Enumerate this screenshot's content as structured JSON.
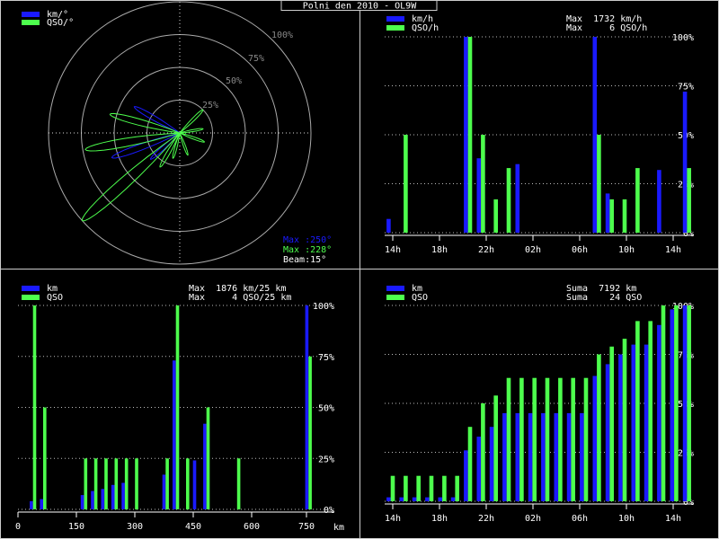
{
  "title": "Polni den 2010 - OL9W",
  "colors": {
    "blue": "#1a1aff",
    "green": "#4dff4d",
    "grid": "#aaaaaa",
    "bg": "#000000"
  },
  "chart_data": [
    {
      "type": "polar",
      "legend": [
        "km/°",
        "QSO/°"
      ],
      "ring_labels": [
        "100%",
        "75%",
        "50%",
        "25%"
      ],
      "info": {
        "max_blue": "Max :250°",
        "max_green": "Max :228°",
        "beam": "Beam:15°"
      },
      "series": [
        {
          "name": "km/°",
          "lobes": [
            {
              "angle": 228,
              "r": 0.3
            },
            {
              "angle": 250,
              "r": 0.55
            },
            {
              "angle": 300,
              "r": 0.4
            }
          ]
        },
        {
          "name": "QSO/°",
          "lobes": [
            {
              "angle": 228,
              "r": 1.0
            },
            {
              "angle": 260,
              "r": 0.73
            },
            {
              "angle": 285,
              "r": 0.55
            },
            {
              "angle": 210,
              "r": 0.3
            },
            {
              "angle": 195,
              "r": 0.2
            },
            {
              "angle": 160,
              "r": 0.18
            },
            {
              "angle": 110,
              "r": 0.2
            },
            {
              "angle": 80,
              "r": 0.18
            },
            {
              "angle": 45,
              "r": 0.25
            }
          ]
        }
      ]
    },
    {
      "type": "bar",
      "legend": [
        "km/h",
        "QSO/h"
      ],
      "info": [
        "Max  1732 km/h",
        "Max     6 QSO/h"
      ],
      "x_ticks": [
        "14h",
        "18h",
        "22h",
        "02h",
        "06h",
        "10h",
        "14h"
      ],
      "y_ticks": [
        "100%",
        "75%",
        "50%",
        "25%",
        "0%"
      ],
      "series": [
        {
          "name": "km/h",
          "values": [
            0.07,
            0,
            0,
            0,
            0,
            0,
            1.0,
            0.38,
            0,
            0,
            0.35,
            0,
            0,
            0,
            0,
            0,
            1.0,
            0.2,
            0,
            0,
            0,
            0.32,
            0,
            0.72
          ]
        },
        {
          "name": "QSO/h",
          "values": [
            0,
            0.5,
            0,
            0,
            0,
            0,
            1.0,
            0.5,
            0.17,
            0.33,
            0,
            0,
            0,
            0,
            0,
            0,
            0.5,
            0.17,
            0.17,
            0.33,
            0,
            0,
            0,
            0.33
          ]
        }
      ]
    },
    {
      "type": "bar",
      "legend": [
        "km",
        "QSO"
      ],
      "info": [
        "Max  1876 km/25 km",
        "Max     4 QSO/25 km"
      ],
      "x_ticks": [
        "0",
        "150",
        "300",
        "450",
        "600",
        "750"
      ],
      "x_unit": "km",
      "y_ticks": [
        "100%",
        "75%",
        "50%",
        "25%",
        "0%"
      ],
      "series": [
        {
          "name": "km",
          "values": [
            0,
            0.04,
            0.05,
            0,
            0,
            0,
            0.07,
            0.09,
            0.1,
            0.12,
            0.13,
            0,
            0,
            0,
            0.17,
            0.73,
            0,
            0.24,
            0.42,
            0,
            0,
            0,
            0,
            0,
            0,
            0,
            0,
            0,
            1.0,
            0,
            0
          ]
        },
        {
          "name": "QSO",
          "values": [
            0,
            1.0,
            0.5,
            0,
            0,
            0,
            0.25,
            0.25,
            0.25,
            0.25,
            0.25,
            0.25,
            0,
            0,
            0.25,
            1.0,
            0.25,
            0,
            0.5,
            0,
            0,
            0.25,
            0,
            0,
            0,
            0,
            0,
            0,
            0.75,
            0,
            0
          ]
        }
      ]
    },
    {
      "type": "bar",
      "legend": [
        "km",
        "QSO"
      ],
      "info": [
        "Suma  7192 km",
        "Suma    24 QSO"
      ],
      "x_ticks": [
        "14h",
        "18h",
        "22h",
        "02h",
        "06h",
        "10h",
        "14h"
      ],
      "y_ticks": [
        "100%",
        "75%",
        "50%",
        "25%",
        "0%"
      ],
      "series": [
        {
          "name": "km",
          "values": [
            0.02,
            0.02,
            0.02,
            0.02,
            0.02,
            0.02,
            0.26,
            0.33,
            0.38,
            0.45,
            0.45,
            0.45,
            0.45,
            0.45,
            0.45,
            0.45,
            0.64,
            0.7,
            0.75,
            0.8,
            0.8,
            0.9,
            0.98,
            1.0
          ]
        },
        {
          "name": "QSO",
          "values": [
            0.13,
            0.13,
            0.13,
            0.13,
            0.13,
            0.13,
            0.38,
            0.5,
            0.54,
            0.63,
            0.63,
            0.63,
            0.63,
            0.63,
            0.63,
            0.63,
            0.75,
            0.79,
            0.83,
            0.92,
            0.92,
            1.0,
            1.0,
            1.0
          ]
        }
      ]
    }
  ]
}
